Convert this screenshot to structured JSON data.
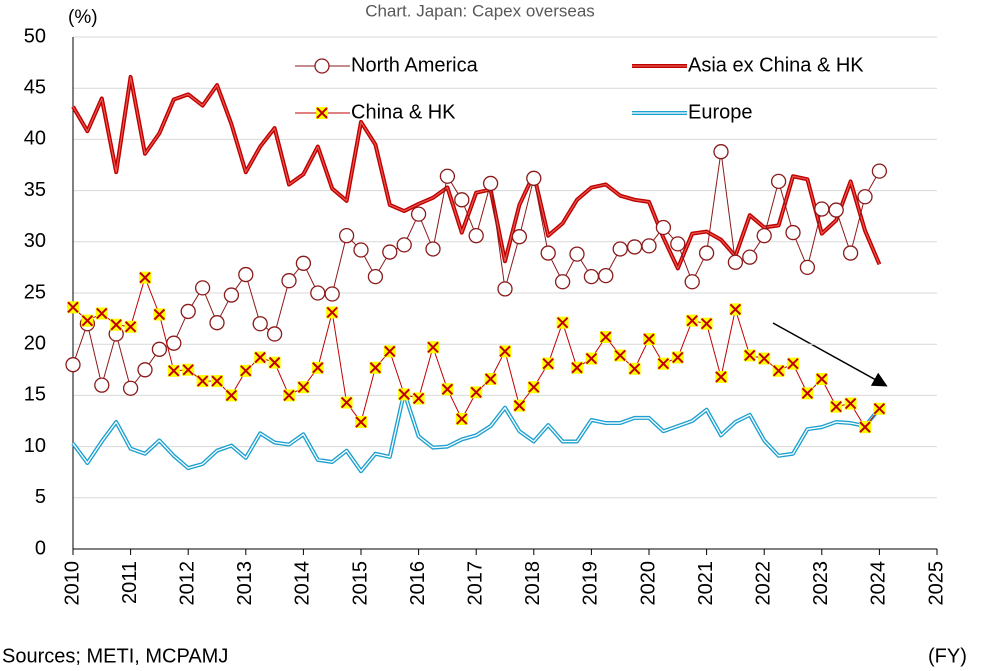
{
  "chart_data": {
    "type": "line",
    "title": "Chart. Japan: Capex overseas",
    "y_label": "(%)",
    "x_label": "(FY)",
    "source": "Sources; METI, MCPAMJ",
    "x": [
      2010,
      2010.25,
      2010.5,
      2010.75,
      2011,
      2011.25,
      2011.5,
      2011.75,
      2012,
      2012.25,
      2012.5,
      2012.75,
      2013,
      2013.25,
      2013.5,
      2013.75,
      2014,
      2014.25,
      2014.5,
      2014.75,
      2015,
      2015.25,
      2015.5,
      2015.75,
      2016,
      2016.25,
      2016.5,
      2016.75,
      2017,
      2017.25,
      2017.5,
      2017.75,
      2018,
      2018.25,
      2018.5,
      2018.75,
      2019,
      2019.25,
      2019.5,
      2019.75,
      2020,
      2020.25,
      2020.5,
      2020.75,
      2021,
      2021.25,
      2021.5,
      2021.75,
      2022,
      2022.25,
      2022.5,
      2022.75,
      2023,
      2023.25,
      2023.5,
      2023.75,
      2024
    ],
    "series": [
      {
        "name": "North America",
        "color": "#8b1a1a",
        "values": [
          18,
          22,
          16,
          21,
          15.7,
          17.5,
          19.5,
          20.1,
          23.2,
          25.5,
          22.1,
          24.8,
          26.8,
          22,
          21,
          26.2,
          27.9,
          25,
          24.9,
          30.6,
          29.2,
          26.6,
          29,
          29.7,
          32.7,
          29.3,
          36.4,
          34.1,
          30.6,
          35.7,
          25.4,
          30.5,
          36.2,
          28.9,
          26.1,
          28.8,
          26.6,
          26.7,
          29.3,
          29.5,
          29.6,
          31.4,
          29.8,
          26.1,
          28.9,
          38.8,
          28,
          28.5,
          30.6,
          35.9,
          30.9,
          27.5,
          33.2,
          33.1,
          28.9,
          34.4,
          36.9
        ]
      },
      {
        "name": "Asia ex China & HK",
        "color": "#c00000",
        "values": [
          43.2,
          40.8,
          44,
          36.8,
          46.1,
          38.6,
          40.6,
          43.9,
          44.4,
          43.3,
          45.3,
          41.5,
          36.8,
          39.3,
          41.1,
          35.6,
          36.6,
          39.3,
          35.2,
          34,
          41.7,
          39.5,
          33.6,
          33,
          33.7,
          34.3,
          35.3,
          30.9,
          34.8,
          35.1,
          28.1,
          33.6,
          36.6,
          30.6,
          31.8,
          34.1,
          35.3,
          35.6,
          34.5,
          34.1,
          33.9,
          30.4,
          27.4,
          30.8,
          31,
          30.2,
          28.6,
          32.6,
          31.4,
          31.6,
          36.4,
          36.1,
          30.8,
          32.1,
          35.9,
          31.1,
          27.8
        ]
      },
      {
        "name": "China & HK",
        "color": "#c00000",
        "values": [
          23.6,
          22.3,
          23,
          21.9,
          21.7,
          26.5,
          22.9,
          17.4,
          17.5,
          16.4,
          16.4,
          15,
          17.4,
          18.7,
          18.2,
          15,
          15.8,
          17.7,
          23.1,
          14.3,
          12.4,
          17.7,
          19.3,
          15.1,
          14.7,
          19.7,
          15.6,
          12.7,
          15.3,
          16.6,
          19.3,
          14,
          15.8,
          18.1,
          22.1,
          17.7,
          18.6,
          20.7,
          18.9,
          17.6,
          20.5,
          18.1,
          18.7,
          22.3,
          22,
          16.8,
          23.4,
          18.9,
          18.6,
          17.4,
          18.1,
          15.2,
          16.6,
          13.9,
          14.2,
          11.9,
          13.7
        ]
      },
      {
        "name": "Europe",
        "color": "#1ca0d0",
        "values": [
          10.3,
          8.4,
          10.5,
          12.4,
          9.8,
          9.3,
          10.6,
          9.1,
          7.9,
          8.3,
          9.6,
          10.1,
          8.9,
          11.3,
          10.4,
          10.2,
          11.2,
          8.7,
          8.5,
          9.6,
          7.6,
          9.3,
          9,
          15.3,
          11,
          9.9,
          10,
          10.7,
          11.1,
          12,
          13.8,
          11.5,
          10.5,
          12.1,
          10.5,
          10.5,
          12.6,
          12.3,
          12.3,
          12.8,
          12.8,
          11.5,
          12,
          12.5,
          13.6,
          11.1,
          12.4,
          13.1,
          10.6,
          9.1,
          9.3,
          11.7,
          11.9,
          12.4,
          12.3,
          12,
          13.7
        ]
      }
    ],
    "xlim": [
      2010,
      2025
    ],
    "xticks": [
      2010,
      2011,
      2012,
      2013,
      2014,
      2015,
      2016,
      2017,
      2018,
      2019,
      2020,
      2021,
      2022,
      2023,
      2024,
      2025
    ],
    "ylim": [
      0,
      50
    ],
    "yticks": [
      0,
      5,
      10,
      15,
      20,
      25,
      30,
      35,
      40,
      45,
      50
    ],
    "grid": true
  }
}
